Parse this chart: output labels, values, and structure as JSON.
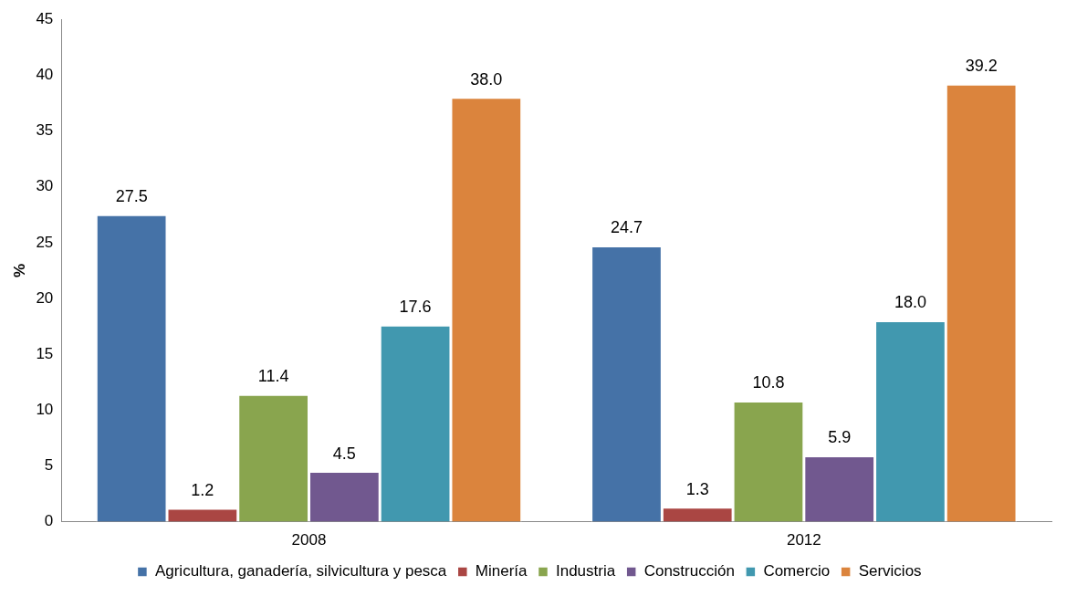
{
  "chart_data": {
    "type": "bar",
    "ylabel": "%",
    "categories": [
      "2008",
      "2012"
    ],
    "series": [
      {
        "name": "Agricultura, ganadería, silvicultura y pesca",
        "color": "#4572a7",
        "values": [
          27.5,
          24.7
        ],
        "value_labels": [
          "27.5",
          "24.7"
        ]
      },
      {
        "name": "Minería",
        "color": "#aa4643",
        "values": [
          1.2,
          1.3
        ],
        "value_labels": [
          "1.2",
          "1.3"
        ]
      },
      {
        "name": "Industria",
        "color": "#89a54e",
        "values": [
          11.4,
          10.8
        ],
        "value_labels": [
          "11.4",
          "10.8"
        ]
      },
      {
        "name": "Construcción",
        "color": "#71588f",
        "values": [
          4.5,
          5.9
        ],
        "value_labels": [
          "4.5",
          "5.9"
        ]
      },
      {
        "name": "Comercio",
        "color": "#4198af",
        "values": [
          17.6,
          18.0
        ],
        "value_labels": [
          "17.6",
          "18.0"
        ]
      },
      {
        "name": "Servicios",
        "color": "#db843d",
        "values": [
          38.0,
          39.2
        ],
        "value_labels": [
          "38.0",
          "39.2"
        ]
      }
    ],
    "ylim": [
      0,
      45
    ],
    "yticks": [
      0,
      5,
      10,
      15,
      20,
      25,
      30,
      35,
      40,
      45
    ],
    "grid": false,
    "legend": "bottom"
  }
}
